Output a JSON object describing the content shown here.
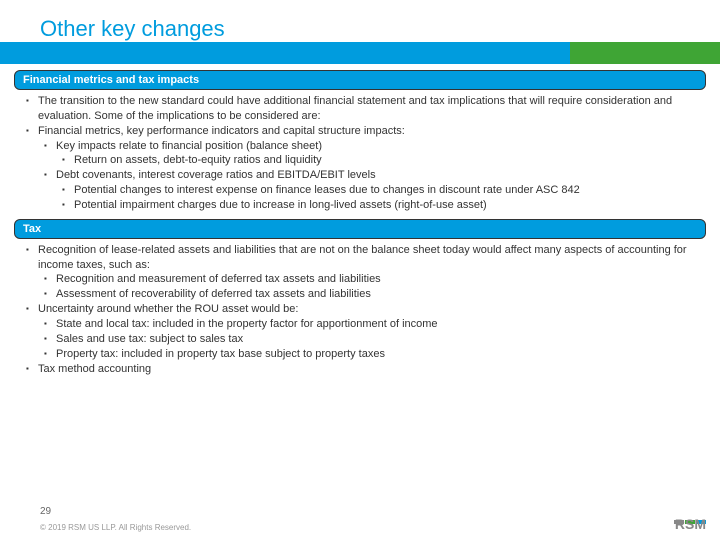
{
  "colors": {
    "title": "#009cde",
    "header_bg": "#009cde",
    "header_text": "#ffffff",
    "stripe_blue": "#009cde",
    "stripe_green": "#3fa535",
    "body_text": "#333333",
    "footer_text": "#999999",
    "logo_gray": "#888888",
    "logo_green": "#3fa535",
    "logo_blue": "#009cde"
  },
  "title": "Other key changes",
  "sections": [
    {
      "header": "Financial metrics and tax impacts",
      "items": [
        {
          "text": "The transition to the new standard could have additional financial statement and tax implications that will require consideration and evaluation.  Some of the implications to be considered are:"
        },
        {
          "text": "Financial metrics, key performance indicators and capital structure impacts:",
          "children": [
            {
              "text": "Key impacts relate to financial position (balance sheet)",
              "children": [
                {
                  "text": "Return on assets, debt-to-equity ratios and liquidity"
                }
              ]
            },
            {
              "text": "Debt covenants, interest coverage ratios and EBITDA/EBIT levels",
              "children": [
                {
                  "text": "Potential changes to interest expense on finance leases due to changes in discount rate under ASC 842"
                },
                {
                  "text": "Potential impairment charges due to increase in long-lived assets (right-of-use asset)"
                }
              ]
            }
          ]
        }
      ]
    },
    {
      "header": "Tax",
      "items": [
        {
          "text": "Recognition of lease-related assets and liabilities that are not on the balance sheet today would affect many aspects of accounting for income taxes, such as:",
          "children": [
            {
              "text": "Recognition and measurement of deferred tax assets and liabilities"
            },
            {
              "text": "Assessment of recoverability of deferred tax assets and liabilities"
            }
          ]
        },
        {
          "text": "Uncertainty around whether the ROU asset would be:",
          "children": [
            {
              "text": "State and local tax: included in the property factor for apportionment of income"
            },
            {
              "text": "Sales and use tax: subject to sales tax"
            },
            {
              "text": "Property tax: included in property tax base subject to property taxes"
            }
          ]
        },
        {
          "text": "Tax method accounting"
        }
      ]
    }
  ],
  "footer": {
    "page": "29",
    "copyright": "© 2019 RSM US LLP. All Rights Reserved."
  },
  "logo": {
    "text": "RSM"
  }
}
